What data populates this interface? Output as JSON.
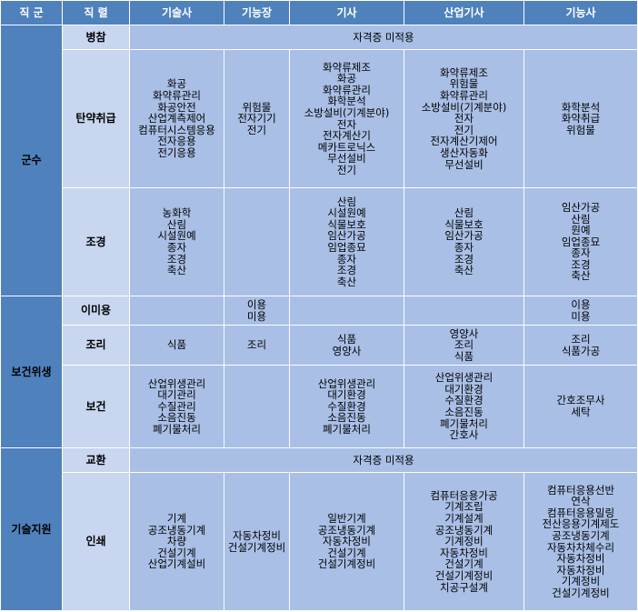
{
  "headers": [
    "직 군",
    "직 렬",
    "기술사",
    "기능장",
    "기사",
    "산업기사",
    "기능사"
  ],
  "groups": [
    {
      "name": "군수",
      "rows": [
        {
          "name": "병참",
          "merged": "자격증 미적용"
        },
        {
          "name": "탄약취급",
          "cells": [
            [
              "화공",
              "화약류관리",
              "화공안전",
              "산업계측제어",
              "컴퓨터시스템응용",
              "전자응용",
              "전기응용"
            ],
            [
              "위험물",
              "전자기기",
              "전기"
            ],
            [
              "화약류제조",
              "화공",
              "화약류관리",
              "화학분석",
              "소방설비(기계분야)",
              "전자",
              "전자계산기",
              "메카트로닉스",
              "무선설비",
              "전기"
            ],
            [
              "화약류제조",
              "위험물",
              "화약류관리",
              "소방설비(기계분야)",
              "전자",
              "전기",
              "전자계산기제어",
              "생산자동화",
              "무선설비"
            ],
            [
              "화학분석",
              "화약취급",
              "위험물"
            ]
          ]
        },
        {
          "name": "조경",
          "cells": [
            [
              "농화학",
              "산림",
              "시설원예",
              "종자",
              "조경",
              "축산"
            ],
            [],
            [
              "산림",
              "시설원예",
              "식물보호",
              "임산가공",
              "임업종묘",
              "종자",
              "조경",
              "축산"
            ],
            [
              "산림",
              "식물보호",
              "임산가공",
              "종자",
              "조경",
              "축산"
            ],
            [
              "임산가공",
              "산림",
              "원예",
              "임업종묘",
              "종자",
              "조경",
              "축산"
            ]
          ]
        }
      ]
    },
    {
      "name": "보건위생",
      "rows": [
        {
          "name": "이미용",
          "cells": [
            [],
            [
              "이용",
              "미용"
            ],
            [],
            [],
            [
              "이용",
              "미용"
            ]
          ]
        },
        {
          "name": "조리",
          "cells": [
            [
              "식품"
            ],
            [
              "조리"
            ],
            [
              "식품",
              "영양사"
            ],
            [
              "영양사",
              "조리",
              "식품"
            ],
            [
              "조리",
              "식품가공"
            ]
          ]
        },
        {
          "name": "보건",
          "cells": [
            [
              "산업위생관리",
              "대기관리",
              "수질관리",
              "소음진동",
              "폐기물처리"
            ],
            [],
            [
              "산업위생관리",
              "대기환경",
              "수질환경",
              "소음진동",
              "폐기물처리"
            ],
            [
              "산업위생관리",
              "대기환경",
              "수질환경",
              "소음진동",
              "폐기물처리",
              "간호사"
            ],
            [
              "간호조무사",
              "세탁"
            ]
          ]
        }
      ]
    },
    {
      "name": "기술지원",
      "rows": [
        {
          "name": "교환",
          "merged": "자격증 미적용"
        },
        {
          "name": "인쇄",
          "cells": [
            [
              "기계",
              "공조냉동기계",
              "차량",
              "건설기계",
              "산업기계설비"
            ],
            [
              "자동차정비",
              "건설기계정비"
            ],
            [
              "일반기계",
              "공조냉동기계",
              "자동차정비",
              "건설기계",
              "건설기계정비"
            ],
            [
              "컴퓨터응용가공",
              "기계조립",
              "기계설계",
              "공조냉동기계",
              "기계정비",
              "자동차정비",
              "건설기계",
              "건설기계정비",
              "치공구설계"
            ],
            [
              "컴퓨터응용선반",
              "연삭",
              "컴퓨터응용밀링",
              "전산응용기계제도",
              "공조냉동기계",
              "자동차차체수리",
              "자동차정비",
              "자동차정비",
              "기계정비",
              "건설기계정비"
            ]
          ]
        }
      ]
    }
  ]
}
